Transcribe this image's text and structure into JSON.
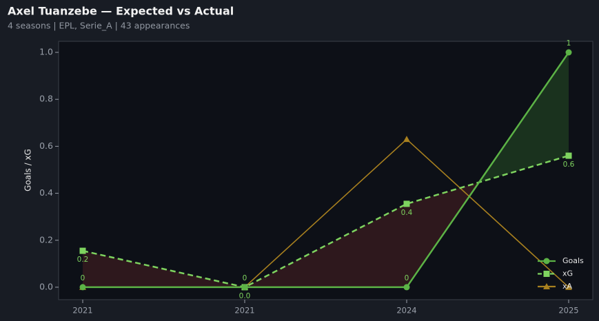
{
  "chart_data": {
    "type": "line",
    "title": "Axel Tuanzebe — Expected vs Actual",
    "subtitle": "4 seasons | EPL, Serie_A | 43 appearances",
    "y_label": "Goals / xG",
    "categories": [
      "2021",
      "2021",
      "2024",
      "2025"
    ],
    "series": [
      {
        "name": "Goals",
        "color": "#5cb346",
        "values": [
          0,
          0,
          0,
          1
        ],
        "marker": "circle",
        "dash": false
      },
      {
        "name": "xG",
        "color": "#7ed35f",
        "values": [
          0.155,
          0,
          0.355,
          0.56
        ],
        "value_labels": [
          "0.2",
          "0.0",
          "0.4",
          "0.6"
        ],
        "marker": "square",
        "dash": true
      },
      {
        "name": "xA",
        "color": "#a8801f",
        "values": [
          0,
          0,
          0.63,
          0
        ],
        "marker": "triangle",
        "dash": false
      }
    ],
    "ylim": [
      -0.053,
      1.047
    ],
    "yticks": [
      {
        "value": 0,
        "label": "0.0"
      },
      0.2,
      0.4,
      0.6,
      0.8,
      {
        "value": 1,
        "label": "1.0"
      }
    ],
    "legend": "lower right",
    "grid": false
  }
}
